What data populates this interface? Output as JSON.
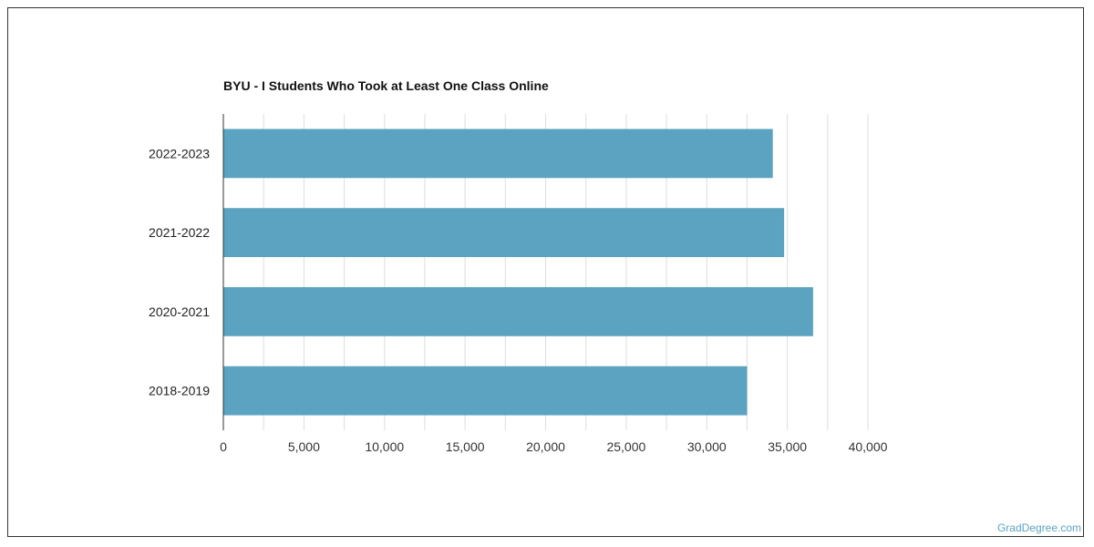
{
  "chart_data": {
    "type": "bar",
    "orientation": "horizontal",
    "title": "BYU - I Students Who Took at Least One Class Online",
    "categories": [
      "2022-2023",
      "2021-2022",
      "2020-2021",
      "2018-2019"
    ],
    "values": [
      34100,
      34800,
      36600,
      32500
    ],
    "xlim": [
      0,
      40000
    ],
    "x_ticks": [
      0,
      5000,
      10000,
      15000,
      20000,
      25000,
      30000,
      35000,
      40000
    ],
    "x_tick_labels": [
      "0",
      "5,000",
      "10,000",
      "15,000",
      "20,000",
      "25,000",
      "30,000",
      "35,000",
      "40,000"
    ],
    "grid": true,
    "bar_color": "#5ba3c0",
    "gridline_color": "#dddddd"
  },
  "footer": {
    "watermark": "GradDegree.com"
  }
}
